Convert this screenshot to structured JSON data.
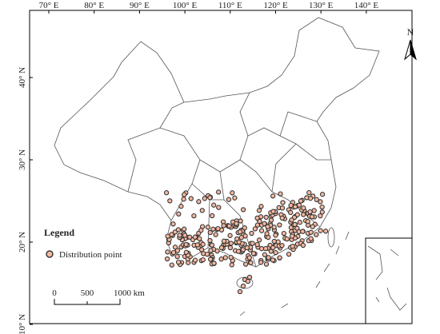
{
  "map": {
    "lon_labels": [
      "70° E",
      "80° E",
      "90° E",
      "100° E",
      "110° E",
      "120° E",
      "130° E",
      "140° E"
    ],
    "lat_labels": [
      "40° N",
      "30° N",
      "20° N",
      "10° N"
    ],
    "north": "N",
    "legend": {
      "title": "Legend",
      "items": [
        "Distribution point"
      ]
    },
    "scale_bar": {
      "labels": [
        "0",
        "500",
        "1000 km"
      ]
    }
  }
}
